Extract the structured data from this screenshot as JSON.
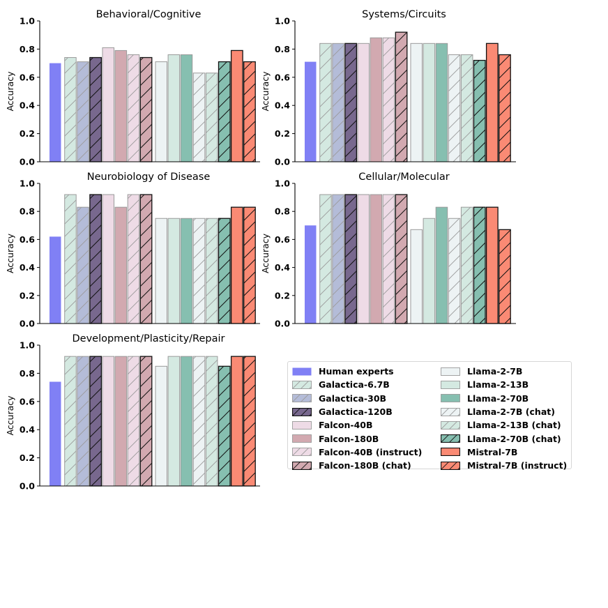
{
  "colors": {
    "human": "#8080f5",
    "galactica": "#b4bcd8",
    "galactica120": "#78688e",
    "falcon40": "#eedbe6",
    "falcon180": "#d2a9b0",
    "llama_light": "#edf3f4",
    "llama13": "#d4e9e1",
    "llama70": "#86bfb0",
    "mistral": "#fa8a74",
    "hatch": "#777777",
    "hatch_dark": "#111111"
  },
  "models": [
    {
      "name": "Human experts",
      "color": "human",
      "hatch": false,
      "dark": false
    },
    {
      "name": "Galactica-6.7B",
      "color": "llama13",
      "hatch": true,
      "dark": false
    },
    {
      "name": "Galactica-30B",
      "color": "galactica",
      "hatch": true,
      "dark": false
    },
    {
      "name": "Galactica-120B",
      "color": "galactica120",
      "hatch": true,
      "dark": true
    },
    {
      "name": "Falcon-40B",
      "color": "falcon40",
      "hatch": false,
      "dark": false
    },
    {
      "name": "Falcon-180B",
      "color": "falcon180",
      "hatch": false,
      "dark": false
    },
    {
      "name": "Falcon-40B (instruct)",
      "color": "falcon40",
      "hatch": true,
      "dark": false
    },
    {
      "name": "Falcon-180B (chat)",
      "color": "falcon180",
      "hatch": true,
      "dark": true
    },
    {
      "name": "Llama-2-7B",
      "color": "llama_light",
      "hatch": false,
      "dark": false
    },
    {
      "name": "Llama-2-13B",
      "color": "llama13",
      "hatch": false,
      "dark": false
    },
    {
      "name": "Llama-2-70B",
      "color": "llama70",
      "hatch": false,
      "dark": false
    },
    {
      "name": "Llama-2-7B (chat)",
      "color": "llama_light",
      "hatch": true,
      "dark": false
    },
    {
      "name": "Llama-2-13B (chat)",
      "color": "llama13",
      "hatch": true,
      "dark": false
    },
    {
      "name": "Llama-2-70B (chat)",
      "color": "llama70",
      "hatch": true,
      "dark": true
    },
    {
      "name": "Mistral-7B",
      "color": "mistral",
      "hatch": false,
      "dark": true
    },
    {
      "name": "Mistral-7B (instruct)",
      "color": "mistral",
      "hatch": true,
      "dark": true
    }
  ],
  "legend": {
    "columns": 2,
    "rows_per_column": 8
  },
  "chart_data": [
    {
      "type": "bar",
      "title": "Behavioral/Cognitive",
      "ylabel": "Accuracy",
      "ylim": [
        0,
        1.0
      ],
      "yticks": [
        "0.0",
        "0.2",
        "0.4",
        "0.6",
        "0.8",
        "1.0"
      ],
      "values": [
        0.7,
        0.74,
        0.71,
        0.74,
        0.81,
        0.79,
        0.76,
        0.74,
        0.71,
        0.76,
        0.76,
        0.63,
        0.63,
        0.71,
        0.79,
        0.71
      ]
    },
    {
      "type": "bar",
      "title": "Systems/Circuits",
      "ylabel": "Accuracy",
      "ylim": [
        0,
        1.0
      ],
      "yticks": [
        "0.0",
        "0.2",
        "0.4",
        "0.6",
        "0.8",
        "1.0"
      ],
      "values": [
        0.71,
        0.84,
        0.84,
        0.84,
        0.84,
        0.88,
        0.88,
        0.92,
        0.84,
        0.84,
        0.84,
        0.76,
        0.76,
        0.72,
        0.84,
        0.76
      ]
    },
    {
      "type": "bar",
      "title": "Neurobiology of Disease",
      "ylabel": "Accuracy",
      "ylim": [
        0,
        1.0
      ],
      "yticks": [
        "0.0",
        "0.2",
        "0.4",
        "0.6",
        "0.8",
        "1.0"
      ],
      "values": [
        0.62,
        0.92,
        0.83,
        0.92,
        0.92,
        0.83,
        0.92,
        0.92,
        0.75,
        0.75,
        0.75,
        0.75,
        0.75,
        0.75,
        0.83,
        0.83
      ]
    },
    {
      "type": "bar",
      "title": "Cellular/Molecular",
      "ylabel": "Accuracy",
      "ylim": [
        0,
        1.0
      ],
      "yticks": [
        "0.0",
        "0.2",
        "0.4",
        "0.6",
        "0.8",
        "1.0"
      ],
      "values": [
        0.7,
        0.92,
        0.92,
        0.92,
        0.92,
        0.92,
        0.92,
        0.92,
        0.67,
        0.75,
        0.83,
        0.75,
        0.83,
        0.83,
        0.83,
        0.67
      ]
    },
    {
      "type": "bar",
      "title": "Development/Plasticity/Repair",
      "ylabel": "Accuracy",
      "ylim": [
        0,
        1.0
      ],
      "yticks": [
        "0.0",
        "0.2",
        "0.4",
        "0.6",
        "0.8",
        "1.0"
      ],
      "values": [
        0.74,
        0.92,
        0.92,
        0.92,
        0.92,
        0.92,
        0.92,
        0.92,
        0.85,
        0.92,
        0.92,
        0.92,
        0.92,
        0.85,
        0.92,
        0.92
      ]
    }
  ]
}
